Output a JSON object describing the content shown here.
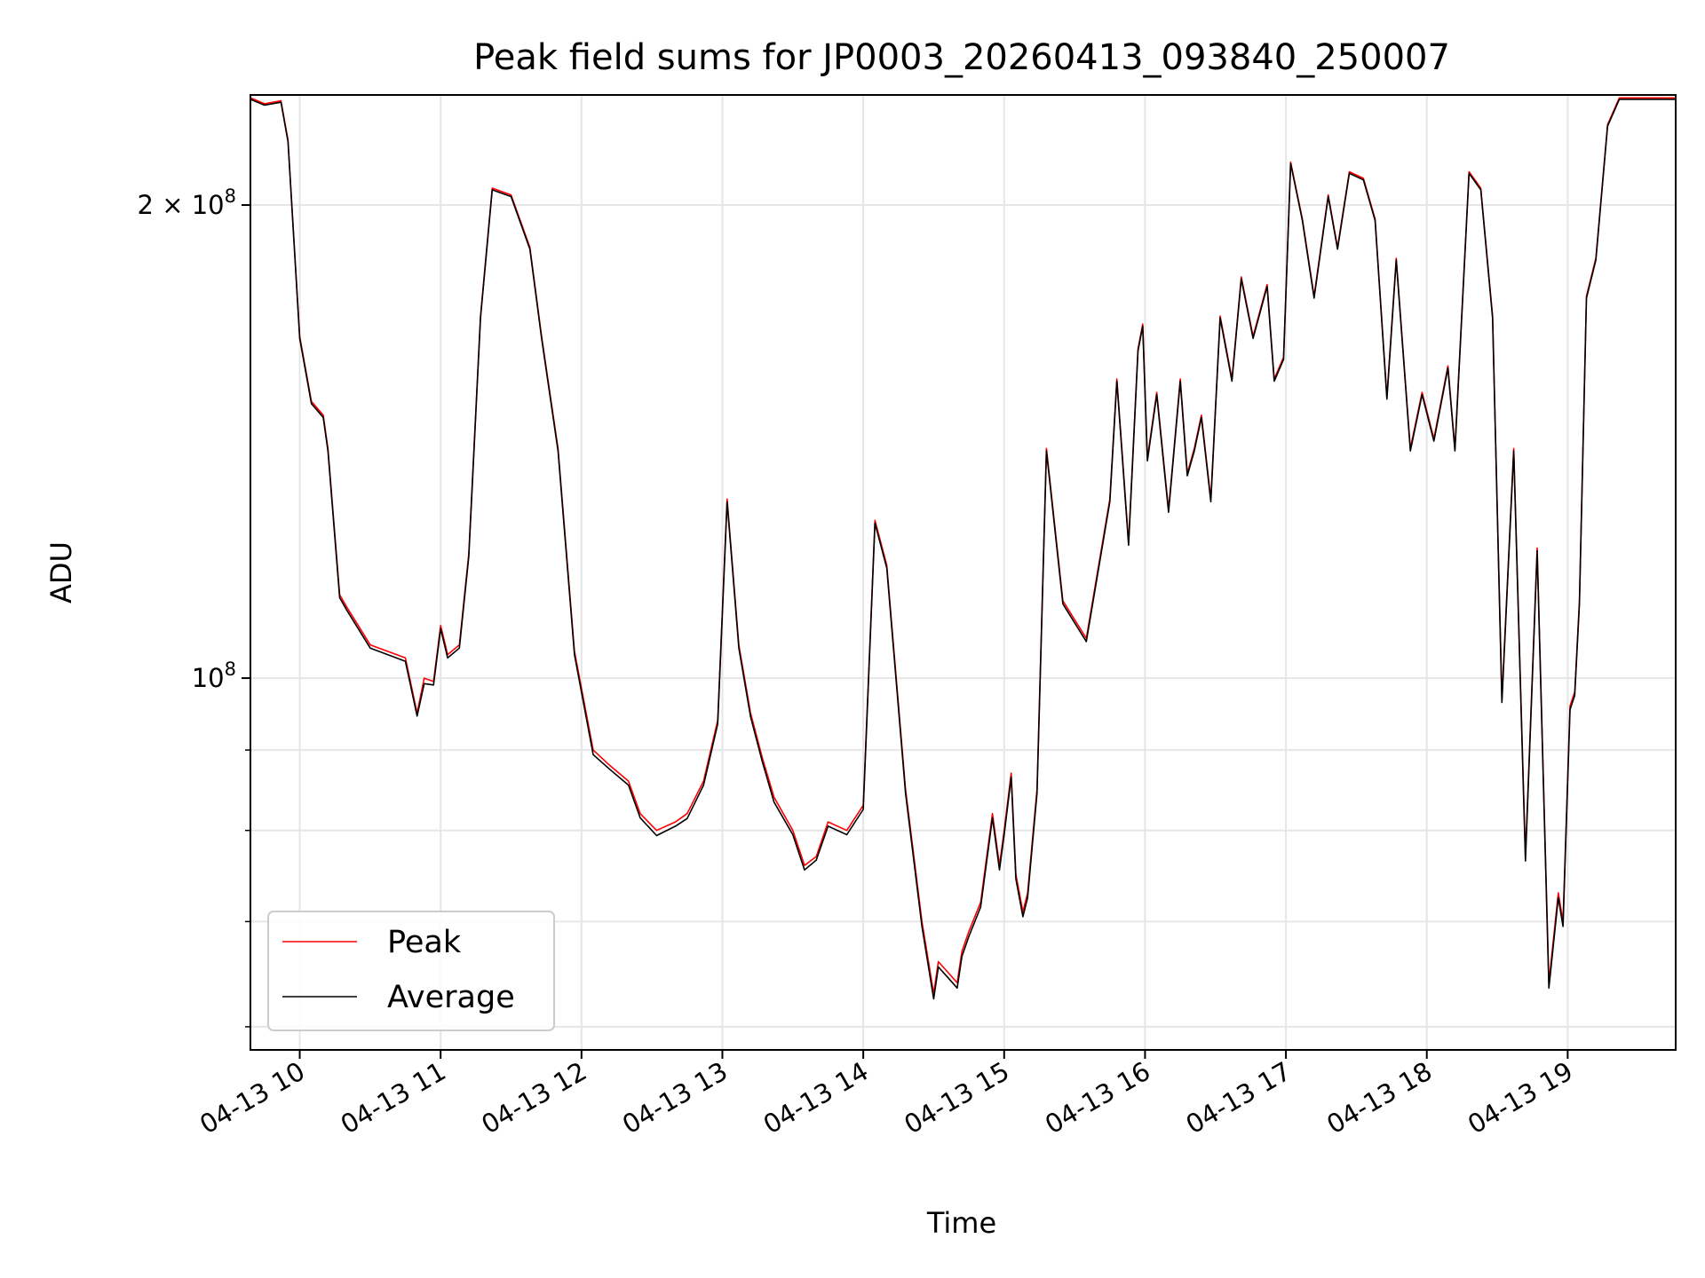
{
  "chart_data": {
    "type": "line",
    "title": "Peak field sums for JP0003_20260413_093840_250007",
    "xlabel": "Time",
    "ylabel": "ADU",
    "yscale": "log",
    "ylim": [
      58000000,
      235000000
    ],
    "xlim": [
      "04-13 09:39",
      "04-13 19:46"
    ],
    "grid": true,
    "legend_position": "lower-left",
    "x_ticks": [
      "04-13 10",
      "04-13 11",
      "04-13 12",
      "04-13 13",
      "04-13 14",
      "04-13 15",
      "04-13 16",
      "04-13 17",
      "04-13 18",
      "04-13 19"
    ],
    "y_ticks": [
      {
        "value": 100000000,
        "label_base": "10",
        "label_exp": "8"
      },
      {
        "value": 200000000,
        "label_base": "2 × 10",
        "label_exp": "8"
      }
    ],
    "y_minor_ticks": [
      60000000,
      70000000,
      80000000,
      90000000
    ],
    "colors": {
      "Peak": "#ff0000",
      "Average": "#000000"
    },
    "x": [
      "09:39",
      "09:45",
      "09:52",
      "09:55",
      "10:00",
      "10:05",
      "10:10",
      "10:12",
      "10:17",
      "10:20",
      "10:30",
      "10:45",
      "10:50",
      "10:53",
      "10:57",
      "11:00",
      "11:03",
      "11:08",
      "11:12",
      "11:17",
      "11:22",
      "11:30",
      "11:38",
      "11:43",
      "11:50",
      "11:57",
      "12:05",
      "12:12",
      "12:20",
      "12:25",
      "12:32",
      "12:40",
      "12:45",
      "12:52",
      "12:58",
      "13:02",
      "13:07",
      "13:12",
      "13:17",
      "13:22",
      "13:30",
      "13:35",
      "13:40",
      "13:45",
      "13:53",
      "14:00",
      "14:05",
      "14:10",
      "14:18",
      "14:25",
      "14:30",
      "14:32",
      "14:36",
      "14:40",
      "14:42",
      "14:45",
      "14:50",
      "14:55",
      "14:58",
      "15:00",
      "15:03",
      "15:05",
      "15:08",
      "15:10",
      "15:14",
      "15:18",
      "15:25",
      "15:35",
      "15:45",
      "15:48",
      "15:53",
      "15:57",
      "15:59",
      "16:01",
      "16:05",
      "16:10",
      "16:15",
      "16:18",
      "16:21",
      "16:24",
      "16:28",
      "16:32",
      "16:37",
      "16:41",
      "16:46",
      "16:52",
      "16:55",
      "16:59",
      "17:02",
      "17:07",
      "17:12",
      "17:18",
      "17:22",
      "17:27",
      "17:33",
      "17:38",
      "17:43",
      "17:47",
      "17:53",
      "17:58",
      "18:03",
      "18:09",
      "18:12",
      "18:18",
      "18:23",
      "18:28",
      "18:32",
      "18:37",
      "18:42",
      "18:47",
      "18:52",
      "18:56",
      "18:58",
      "19:01",
      "19:03",
      "19:05",
      "19:08",
      "19:12",
      "19:17",
      "19:22",
      "19:30",
      "19:35",
      "19:40",
      "19:46"
    ],
    "series": [
      {
        "name": "Peak",
        "values": [
          234000000,
          232000000,
          233000000,
          220000000,
          165000000,
          150000000,
          147000000,
          140000000,
          113000000,
          111000000,
          105000000,
          103000000,
          95000000,
          100000000,
          99500000,
          108000000,
          103500000,
          105000000,
          120000000,
          170000000,
          205000000,
          203000000,
          188000000,
          165000000,
          140000000,
          104000000,
          90000000,
          88000000,
          86000000,
          82000000,
          80000000,
          81000000,
          82000000,
          86000000,
          94000000,
          130000000,
          105000000,
          95000000,
          89000000,
          84000000,
          80000000,
          76000000,
          77000000,
          81000000,
          80000000,
          83000000,
          126000000,
          118000000,
          85000000,
          70000000,
          63000000,
          66000000,
          65000000,
          64000000,
          67000000,
          69000000,
          72000000,
          82000000,
          76000000,
          80000000,
          87000000,
          75000000,
          71000000,
          73000000,
          85000000,
          140000000,
          112000000,
          106000000,
          130000000,
          155000000,
          122000000,
          162000000,
          168000000,
          138000000,
          152000000,
          128000000,
          155000000,
          135000000,
          140000000,
          147000000,
          130000000,
          170000000,
          155000000,
          180000000,
          165000000,
          178000000,
          155000000,
          160000000,
          213000000,
          196000000,
          175000000,
          203000000,
          188000000,
          210000000,
          208000000,
          196000000,
          151000000,
          185000000,
          140000000,
          152000000,
          142000000,
          158000000,
          140000000,
          210000000,
          205000000,
          170000000,
          97000000,
          140000000,
          77000000,
          121000000,
          64000000,
          73000000,
          70000000,
          96000000,
          98000000,
          112000000,
          175000000,
          185000000,
          225000000,
          234000000,
          234000000,
          234000000,
          234000000,
          234000000
        ]
      },
      {
        "name": "Average",
        "values": [
          233500000,
          231500000,
          232500000,
          219500000,
          164500000,
          149500000,
          146500000,
          139500000,
          112500000,
          110500000,
          104500000,
          102500000,
          94600000,
          99200000,
          99000000,
          107500000,
          103000000,
          104500000,
          119500000,
          169500000,
          204500000,
          202500000,
          187500000,
          164500000,
          139500000,
          103500000,
          89400000,
          87500000,
          85500000,
          81500000,
          79400000,
          80500000,
          81400000,
          85500000,
          93500000,
          129500000,
          104500000,
          94500000,
          88500000,
          83400000,
          79500000,
          75500000,
          76600000,
          80500000,
          79500000,
          82500000,
          125500000,
          117500000,
          84500000,
          69500000,
          62500000,
          65500000,
          64500000,
          63500000,
          66500000,
          68500000,
          71500000,
          81500000,
          75500000,
          79500000,
          86500000,
          74500000,
          70500000,
          72500000,
          84500000,
          139500000,
          111500000,
          105500000,
          129500000,
          154500000,
          121500000,
          161500000,
          167500000,
          137500000,
          151500000,
          127500000,
          154500000,
          134500000,
          139500000,
          146500000,
          129500000,
          169500000,
          154500000,
          179500000,
          164500000,
          177500000,
          154500000,
          159500000,
          212500000,
          195500000,
          174500000,
          202500000,
          187500000,
          209500000,
          207500000,
          195500000,
          150500000,
          184500000,
          139500000,
          151500000,
          141500000,
          157500000,
          139500000,
          209500000,
          204500000,
          169500000,
          96500000,
          139500000,
          76500000,
          120500000,
          63500000,
          72500000,
          69500000,
          95500000,
          97500000,
          111500000,
          174500000,
          184500000,
          224500000,
          233500000,
          233500000,
          233500000,
          233500000,
          233500000
        ]
      }
    ]
  }
}
